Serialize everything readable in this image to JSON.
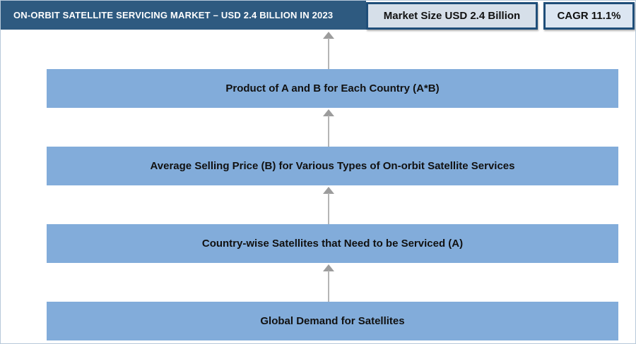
{
  "header": {
    "title": "ON-ORBIT SATELLITE SERVICING MARKET – USD 2.4 BILLION IN 2023",
    "market_size_badge": "Market Size USD 2.4 Billion",
    "cagr_badge": "CAGR 11.1%"
  },
  "flow": {
    "direction": "bottom-up (arrows point upward)",
    "steps_display_top_to_bottom": [
      {
        "label": "Product of A and B for Each Country (A*B)"
      },
      {
        "label": "Average Selling Price (B) for Various Types of On-orbit Satellite Services"
      },
      {
        "label": "Country-wise Satellites that Need to be Serviced (A)"
      },
      {
        "label": "Global Demand for Satellites"
      }
    ]
  },
  "colors": {
    "banner_bg": "#2e5a80",
    "banner_text": "#ffffff",
    "badge_border": "#1f4e79",
    "market_badge_bg": "#d6dfe9",
    "cagr_badge_bg": "#dce6f2",
    "flow_box_bg": "#82acda",
    "flow_box_text": "#111111",
    "arrow": "#9c9c9c",
    "page_border": "#b7c9da"
  }
}
